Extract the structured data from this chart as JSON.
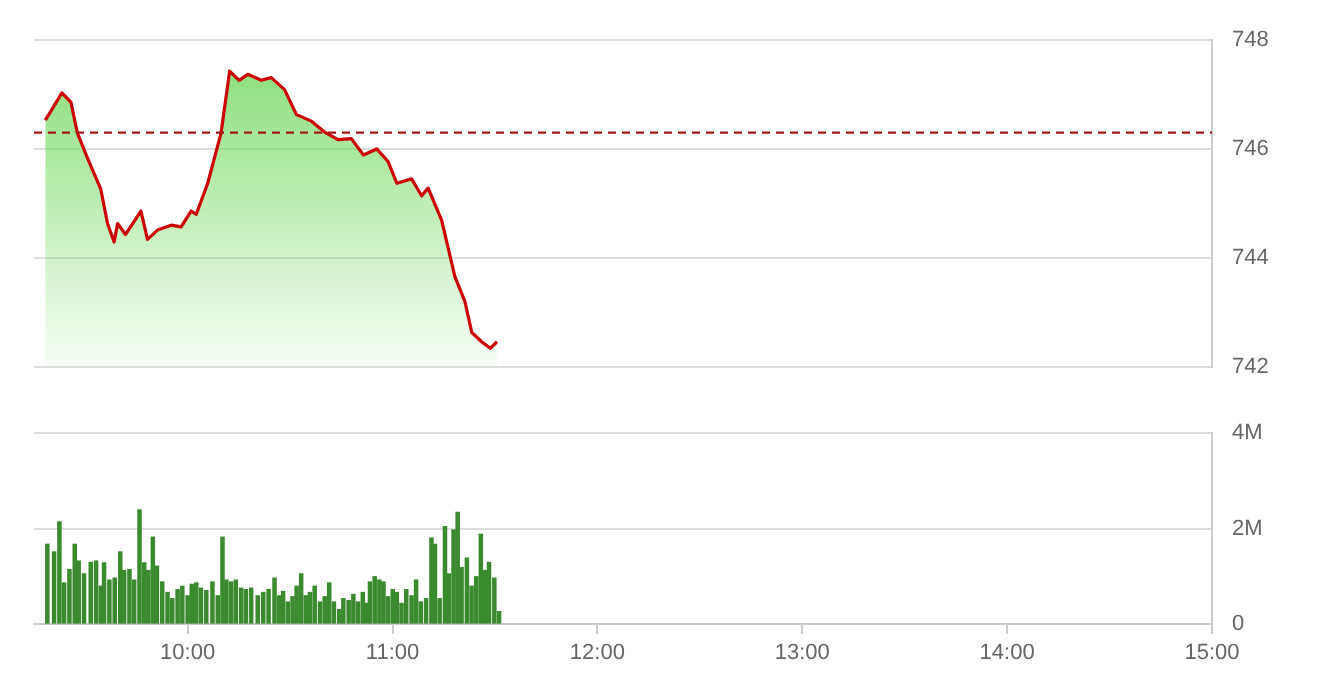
{
  "chart_data": [
    {
      "type": "area",
      "x": [
        9.305,
        9.332,
        9.386,
        9.43,
        9.462,
        9.511,
        9.576,
        9.609,
        9.641,
        9.658,
        9.697,
        9.772,
        9.804,
        9.853,
        9.919,
        9.968,
        10.017,
        10.042,
        10.098,
        10.163,
        10.205,
        10.251,
        10.294,
        10.359,
        10.408,
        10.473,
        10.531,
        10.604,
        10.668,
        10.734,
        10.799,
        10.858,
        10.923,
        10.978,
        11.021,
        11.093,
        11.142,
        11.174,
        11.24,
        11.304,
        11.353,
        11.387,
        11.435,
        11.477,
        11.51
      ],
      "series": [
        {
          "color": "#cc0000",
          "values": [
            746.53,
            746.69,
            747.03,
            746.86,
            746.29,
            745.83,
            745.26,
            744.63,
            744.29,
            744.63,
            744.43,
            744.86,
            744.34,
            744.51,
            744.6,
            744.57,
            744.86,
            744.8,
            745.37,
            746.29,
            747.43,
            747.26,
            747.37,
            747.26,
            747.31,
            747.09,
            746.63,
            746.51,
            746.31,
            746.17,
            746.19,
            745.89,
            746,
            745.77,
            745.37,
            745.45,
            745.14,
            745.28,
            744.69,
            743.66,
            743.2,
            742.63,
            742.46,
            742.34,
            742.46
          ]
        }
      ],
      "xlim": [
        9.25,
        15
      ],
      "ylim": [
        742,
        748
      ],
      "yticks": [
        742,
        744,
        746,
        748
      ],
      "ref_lines": [
        {
          "axis": "y",
          "value": 746.3,
          "color": "#a01818",
          "line_style": "dashed"
        }
      ],
      "grid": "y",
      "legend": false,
      "tick_labels": "y"
    },
    {
      "type": "bar",
      "x": [
        9.315,
        9.348,
        9.374,
        9.397,
        9.423,
        9.449,
        9.468,
        9.494,
        9.527,
        9.553,
        9.576,
        9.592,
        9.618,
        9.644,
        9.671,
        9.69,
        9.716,
        9.739,
        9.765,
        9.788,
        9.808,
        9.83,
        9.85,
        9.876,
        9.902,
        9.925,
        9.951,
        9.974,
        10,
        10.02,
        10.042,
        10.065,
        10.091,
        10.121,
        10.147,
        10.17,
        10.189,
        10.212,
        10.235,
        10.261,
        10.284,
        10.31,
        10.342,
        10.369,
        10.395,
        10.424,
        10.447,
        10.466,
        10.489,
        10.512,
        10.532,
        10.554,
        10.577,
        10.597,
        10.62,
        10.646,
        10.669,
        10.691,
        10.714,
        10.74,
        10.76,
        10.786,
        10.809,
        10.832,
        10.855,
        10.875,
        10.89,
        10.913,
        10.936,
        10.956,
        10.978,
        11.001,
        11.021,
        11.044,
        11.067,
        11.093,
        11.115,
        11.138,
        11.164,
        11.19,
        11.207,
        11.23,
        11.256,
        11.275,
        11.298,
        11.318,
        11.337,
        11.363,
        11.386,
        11.409,
        11.431,
        11.451,
        11.471,
        11.497,
        11.52
      ],
      "series": [
        {
          "color": "#3a8a2e",
          "values": [
            1.67,
            1.51,
            2.14,
            0.86,
            1.14,
            1.67,
            1.32,
            1.05,
            1.29,
            1.32,
            0.79,
            1.28,
            0.92,
            0.96,
            1.51,
            1.12,
            1.14,
            0.92,
            2.39,
            1.28,
            1.12,
            1.82,
            1.21,
            0.88,
            0.66,
            0.53,
            0.72,
            0.79,
            0.59,
            0.83,
            0.86,
            0.75,
            0.7,
            0.88,
            0.59,
            1.82,
            0.92,
            0.88,
            0.92,
            0.75,
            0.72,
            0.75,
            0.59,
            0.66,
            0.72,
            0.96,
            0.59,
            0.68,
            0.46,
            0.57,
            0.79,
            1.05,
            0.59,
            0.66,
            0.79,
            0.46,
            0.57,
            0.86,
            0.46,
            0.3,
            0.53,
            0.49,
            0.62,
            0.46,
            0.66,
            0.43,
            0.88,
            0.99,
            0.92,
            0.88,
            0.57,
            0.72,
            0.66,
            0.43,
            0.72,
            0.59,
            0.92,
            0.46,
            0.53,
            1.8,
            1.67,
            0.53,
            2.04,
            1.05,
            1.97,
            2.34,
            1.18,
            1.38,
            0.79,
            0.99,
            1.88,
            1.12,
            1.29,
            0.96,
            0.26
          ]
        }
      ],
      "xlim": [
        9.25,
        15
      ],
      "xticks": [
        {
          "value": 10,
          "label": "10:00"
        },
        {
          "value": 11,
          "label": "11:00"
        },
        {
          "value": 12,
          "label": "12:00"
        },
        {
          "value": 13,
          "label": "13:00"
        },
        {
          "value": 14,
          "label": "14:00"
        },
        {
          "value": 15,
          "label": "15:00"
        }
      ],
      "ylim": [
        0,
        4
      ],
      "yticks": [
        0,
        {
          "value": 2,
          "label": "2M"
        },
        {
          "value": 4,
          "label": "4M"
        }
      ],
      "grid": "y",
      "legend": false
    }
  ]
}
